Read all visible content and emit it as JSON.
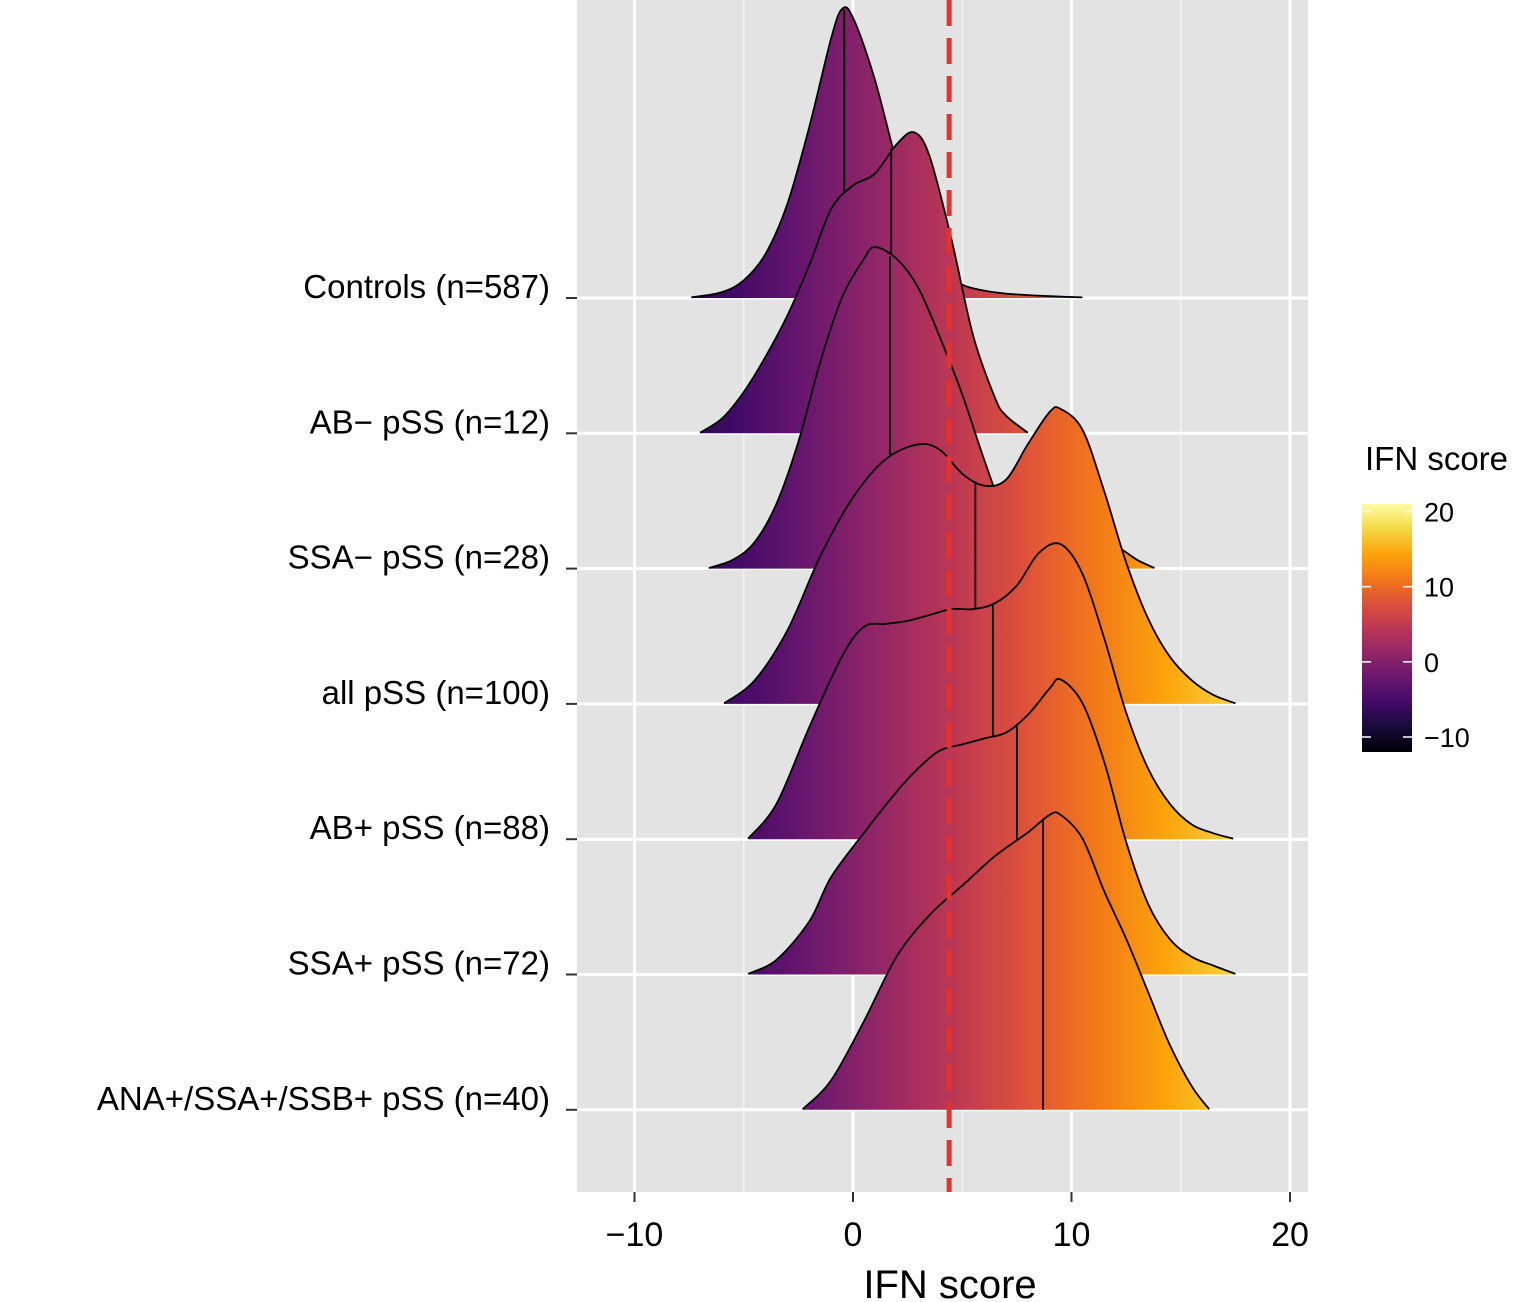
{
  "chart_data": {
    "type": "ridgeline",
    "title": "",
    "xlabel": "IFN score",
    "ylabel": "",
    "xlim": [
      -12.5,
      20.8
    ],
    "x_ticks": [
      -10,
      0,
      10,
      20
    ],
    "x_tick_labels": [
      "−10",
      "0",
      "10",
      "20"
    ],
    "threshold": {
      "x": 4.4,
      "color": "#e8312a",
      "style": "dashed"
    },
    "legend": {
      "title": "IFN score",
      "position": "right",
      "min": -12,
      "max": 21,
      "ticks": [
        20,
        10,
        0,
        -10
      ],
      "tick_labels": [
        "20",
        "10",
        "0",
        "−10"
      ],
      "colormap": "inferno"
    },
    "series": [
      {
        "name": "Controls (n=587)",
        "median": -0.4,
        "x_range": [
          -7.4,
          10.5
        ],
        "density": [
          [
            -7.4,
            0.002
          ],
          [
            -6.0,
            0.02
          ],
          [
            -5.0,
            0.06
          ],
          [
            -4.0,
            0.15
          ],
          [
            -3.0,
            0.32
          ],
          [
            -2.0,
            0.58
          ],
          [
            -1.0,
            0.88
          ],
          [
            -0.5,
            0.98
          ],
          [
            0.0,
            0.95
          ],
          [
            1.0,
            0.74
          ],
          [
            2.0,
            0.46
          ],
          [
            3.0,
            0.23
          ],
          [
            4.0,
            0.1
          ],
          [
            5.0,
            0.045
          ],
          [
            6.0,
            0.025
          ],
          [
            7.0,
            0.015
          ],
          [
            8.0,
            0.01
          ],
          [
            9.0,
            0.006
          ],
          [
            10.5,
            0.002
          ]
        ]
      },
      {
        "name": "AB− pSS (n=12)",
        "median": 1.75,
        "x_range": [
          -7.0,
          8.0
        ],
        "density": [
          [
            -7.0,
            0.002
          ],
          [
            -6.0,
            0.05
          ],
          [
            -5.0,
            0.14
          ],
          [
            -4.0,
            0.26
          ],
          [
            -3.0,
            0.4
          ],
          [
            -2.0,
            0.57
          ],
          [
            -1.0,
            0.76
          ],
          [
            0.0,
            0.84
          ],
          [
            1.0,
            0.88
          ],
          [
            2.0,
            0.98
          ],
          [
            2.8,
            1.02
          ],
          [
            3.5,
            0.94
          ],
          [
            4.5,
            0.66
          ],
          [
            5.5,
            0.33
          ],
          [
            6.5,
            0.12
          ],
          [
            7.0,
            0.06
          ],
          [
            8.0,
            0.002
          ]
        ]
      },
      {
        "name": "SSA− pSS (n=28)",
        "median": 1.7,
        "x_range": [
          -6.6,
          13.8
        ],
        "density": [
          [
            -6.6,
            0.002
          ],
          [
            -5.5,
            0.03
          ],
          [
            -4.5,
            0.09
          ],
          [
            -3.5,
            0.22
          ],
          [
            -2.5,
            0.43
          ],
          [
            -1.5,
            0.7
          ],
          [
            -0.5,
            0.92
          ],
          [
            0.5,
            1.05
          ],
          [
            1.0,
            1.09
          ],
          [
            2.0,
            1.05
          ],
          [
            3.0,
            0.95
          ],
          [
            4.0,
            0.78
          ],
          [
            5.0,
            0.59
          ],
          [
            6.0,
            0.37
          ],
          [
            7.0,
            0.17
          ],
          [
            8.0,
            0.05
          ],
          [
            9.0,
            0.03
          ],
          [
            10.0,
            0.08
          ],
          [
            11.0,
            0.12
          ],
          [
            12.0,
            0.08
          ],
          [
            13.0,
            0.03
          ],
          [
            13.8,
            0.002
          ]
        ]
      },
      {
        "name": "all pSS (n=100)",
        "median": 5.6,
        "x_range": [
          -5.9,
          17.5
        ],
        "density": [
          [
            -5.9,
            0.002
          ],
          [
            -4.5,
            0.08
          ],
          [
            -3.0,
            0.25
          ],
          [
            -1.5,
            0.5
          ],
          [
            0.0,
            0.7
          ],
          [
            1.5,
            0.83
          ],
          [
            3.0,
            0.88
          ],
          [
            4.0,
            0.86
          ],
          [
            5.0,
            0.78
          ],
          [
            6.0,
            0.74
          ],
          [
            7.0,
            0.76
          ],
          [
            8.0,
            0.88
          ],
          [
            9.0,
            0.99
          ],
          [
            9.5,
            1.0
          ],
          [
            10.5,
            0.93
          ],
          [
            11.5,
            0.72
          ],
          [
            12.5,
            0.48
          ],
          [
            13.5,
            0.29
          ],
          [
            14.5,
            0.16
          ],
          [
            15.5,
            0.08
          ],
          [
            16.5,
            0.03
          ],
          [
            17.5,
            0.002
          ]
        ]
      },
      {
        "name": "AB+ pSS (n=88)",
        "median": 6.4,
        "x_range": [
          -4.8,
          17.4
        ],
        "density": [
          [
            -4.8,
            0.002
          ],
          [
            -3.5,
            0.12
          ],
          [
            -2.0,
            0.38
          ],
          [
            -0.5,
            0.62
          ],
          [
            0.5,
            0.72
          ],
          [
            1.5,
            0.73
          ],
          [
            2.5,
            0.74
          ],
          [
            3.5,
            0.76
          ],
          [
            4.5,
            0.78
          ],
          [
            5.5,
            0.78
          ],
          [
            6.5,
            0.8
          ],
          [
            7.5,
            0.86
          ],
          [
            8.5,
            0.97
          ],
          [
            9.5,
            1.0
          ],
          [
            10.5,
            0.9
          ],
          [
            11.5,
            0.68
          ],
          [
            12.5,
            0.43
          ],
          [
            13.5,
            0.24
          ],
          [
            14.5,
            0.12
          ],
          [
            15.5,
            0.05
          ],
          [
            16.5,
            0.02
          ],
          [
            17.4,
            0.002
          ]
        ]
      },
      {
        "name": "SSA+ pSS (n=72)",
        "median": 7.5,
        "x_range": [
          -4.8,
          17.5
        ],
        "density": [
          [
            -4.8,
            0.002
          ],
          [
            -3.5,
            0.05
          ],
          [
            -2.0,
            0.18
          ],
          [
            -1.0,
            0.33
          ],
          [
            0.5,
            0.48
          ],
          [
            2.0,
            0.62
          ],
          [
            3.0,
            0.7
          ],
          [
            4.0,
            0.76
          ],
          [
            5.0,
            0.78
          ],
          [
            6.0,
            0.8
          ],
          [
            7.0,
            0.82
          ],
          [
            8.0,
            0.88
          ],
          [
            9.0,
            0.97
          ],
          [
            9.5,
            1.0
          ],
          [
            10.5,
            0.92
          ],
          [
            11.5,
            0.72
          ],
          [
            12.5,
            0.45
          ],
          [
            13.5,
            0.24
          ],
          [
            14.5,
            0.12
          ],
          [
            15.5,
            0.06
          ],
          [
            16.5,
            0.03
          ],
          [
            17.5,
            0.002
          ]
        ]
      },
      {
        "name": "ANA+/SSA+/SSB+ pSS (n=40)",
        "median": 8.7,
        "x_range": [
          -2.3,
          16.3
        ],
        "density": [
          [
            -2.3,
            0.002
          ],
          [
            -1.0,
            0.1
          ],
          [
            0.5,
            0.3
          ],
          [
            2.0,
            0.52
          ],
          [
            3.5,
            0.66
          ],
          [
            5.0,
            0.76
          ],
          [
            6.5,
            0.86
          ],
          [
            8.0,
            0.94
          ],
          [
            9.0,
            1.0
          ],
          [
            9.5,
            1.0
          ],
          [
            10.5,
            0.92
          ],
          [
            11.5,
            0.74
          ],
          [
            12.5,
            0.58
          ],
          [
            13.5,
            0.4
          ],
          [
            14.5,
            0.22
          ],
          [
            15.5,
            0.08
          ],
          [
            16.3,
            0.002
          ]
        ]
      }
    ]
  }
}
